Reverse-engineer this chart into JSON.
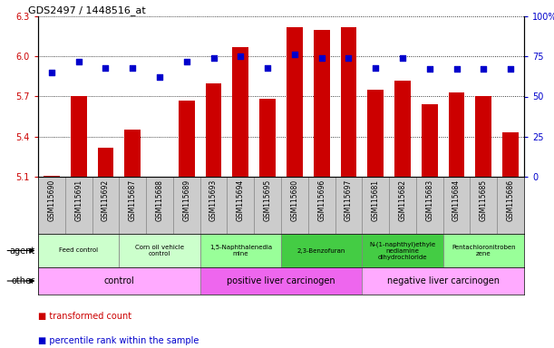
{
  "title": "GDS2497 / 1448516_at",
  "samples": [
    "GSM115690",
    "GSM115691",
    "GSM115692",
    "GSM115687",
    "GSM115688",
    "GSM115689",
    "GSM115693",
    "GSM115694",
    "GSM115695",
    "GSM115680",
    "GSM115696",
    "GSM115697",
    "GSM115681",
    "GSM115682",
    "GSM115683",
    "GSM115684",
    "GSM115685",
    "GSM115686"
  ],
  "transformed_count": [
    5.11,
    5.7,
    5.32,
    5.45,
    5.1,
    5.67,
    5.8,
    6.07,
    5.68,
    6.22,
    6.2,
    6.22,
    5.75,
    5.82,
    5.64,
    5.73,
    5.7,
    5.43
  ],
  "percentile_rank": [
    65,
    72,
    68,
    68,
    62,
    72,
    74,
    75,
    68,
    76,
    74,
    74,
    68,
    74,
    67,
    67,
    67,
    67
  ],
  "ylim_left": [
    5.1,
    6.3
  ],
  "ylim_right": [
    0,
    100
  ],
  "yticks_left": [
    5.1,
    5.4,
    5.7,
    6.0,
    6.3
  ],
  "yticks_right": [
    0,
    25,
    50,
    75,
    100
  ],
  "ytick_labels_right": [
    "0",
    "25",
    "50",
    "75",
    "100%"
  ],
  "agent_groups": [
    {
      "label": "Feed control",
      "start": 0,
      "end": 3,
      "color": "#ccffcc"
    },
    {
      "label": "Corn oil vehicle\ncontrol",
      "start": 3,
      "end": 6,
      "color": "#ccffcc"
    },
    {
      "label": "1,5-Naphthalenedia\nmine",
      "start": 6,
      "end": 9,
      "color": "#99ff99"
    },
    {
      "label": "2,3-Benzofuran",
      "start": 9,
      "end": 12,
      "color": "#44cc44"
    },
    {
      "label": "N-(1-naphthyl)ethyle\nnediamine\ndihydrochloride",
      "start": 12,
      "end": 15,
      "color": "#44cc44"
    },
    {
      "label": "Pentachloronitroben\nzene",
      "start": 15,
      "end": 18,
      "color": "#99ff99"
    }
  ],
  "other_groups": [
    {
      "label": "control",
      "start": 0,
      "end": 6,
      "color": "#ffaaff"
    },
    {
      "label": "positive liver carcinogen",
      "start": 6,
      "end": 12,
      "color": "#ee66ee"
    },
    {
      "label": "negative liver carcinogen",
      "start": 12,
      "end": 18,
      "color": "#ffaaff"
    }
  ],
  "bar_color": "#cc0000",
  "dot_color": "#0000cc",
  "xtick_bg_color": "#cccccc",
  "tick_label_color_left": "#cc0000",
  "tick_label_color_right": "#0000cc"
}
